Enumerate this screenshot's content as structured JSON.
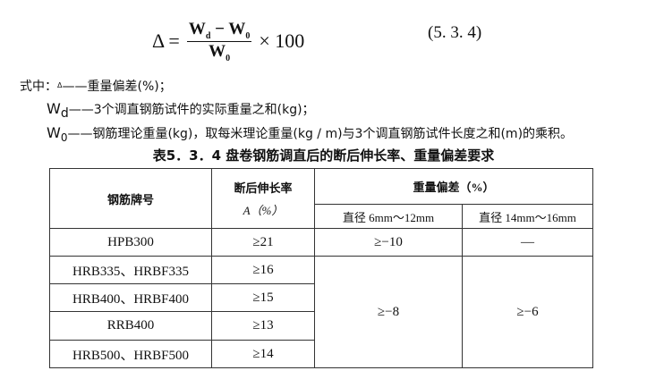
{
  "formula": {
    "lhs": "Δ =",
    "numerator": "W",
    "num_sub_d": "d",
    "minus": " − W",
    "num_sub_0": "0",
    "denominator": "W",
    "den_sub": "0",
    "multiplier": "× 100",
    "equation_number": "(5. 3. 4)"
  },
  "legend": {
    "intro": "式中：",
    "delta_symbol": "Δ",
    "delta_desc": "——重量偏差(%)；",
    "wd_symbol": "W",
    "wd_sub": "d",
    "wd_desc": "——3个调直钢筋试件的实际重量之和(kg)；",
    "w0_symbol": "W",
    "w0_sub": "0",
    "w0_desc": "——钢筋理论重量(kg)，取每米理论重量(kg / m)与3个调直钢筋试件长度之和(m)的乘积。"
  },
  "table": {
    "title": "表5．3．4 盘卷钢筋调直后的断后伸长率、重量偏差要求",
    "headers": {
      "grade": "钢筋牌号",
      "elongation_line1": "断后伸长率",
      "elongation_line2": "A（%）",
      "weight_dev": "重量偏差（%）",
      "dia_small": "直径 6mm～12mm",
      "dia_large": "直径 14mm～16mm"
    },
    "rows": [
      {
        "grade": "HPB300",
        "elongation": "≥21",
        "dev_small": "≥−10",
        "dev_large": "—"
      },
      {
        "grade": "HRB335、HRBF335",
        "elongation": "≥16"
      },
      {
        "grade": "HRB400、HRBF400",
        "elongation": "≥15"
      },
      {
        "grade": "RRB400",
        "elongation": "≥13"
      },
      {
        "grade": "HRB500、HRBF500",
        "elongation": "≥14"
      }
    ],
    "merged_dev_small": "≥−8",
    "merged_dev_large": "≥−6"
  }
}
